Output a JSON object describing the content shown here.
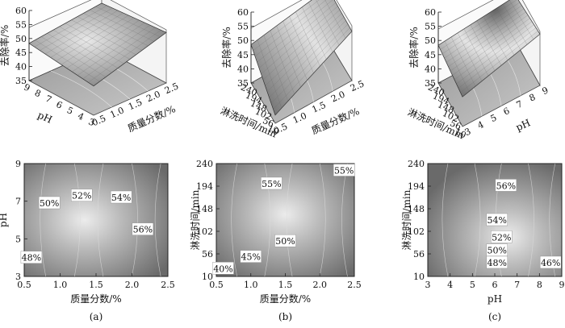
{
  "figure": {
    "captions": [
      "(a)",
      "(b)",
      "(c)"
    ]
  },
  "chart_data": [
    {
      "type": "surface3d",
      "panel": "a-top",
      "zlabel": "去除率/%",
      "zticks": [
        "60",
        "55",
        "50",
        "45",
        "40",
        "35"
      ],
      "zlim": [
        35,
        60
      ],
      "xlabel": "质量分数/%",
      "xticks": [
        "0.5",
        "1.0",
        "1.5",
        "2.0",
        "2.5"
      ],
      "ylabel": "pH",
      "yticks": [
        "3",
        "4",
        "5",
        "6",
        "7",
        "8",
        "9"
      ]
    },
    {
      "type": "surface3d",
      "panel": "b-top",
      "zlabel": "去除率/%",
      "zticks": [
        "60",
        "55",
        "50",
        "45",
        "40",
        "35"
      ],
      "zlim": [
        35,
        60
      ],
      "xlabel": "质量分数/%",
      "xticks": [
        "0.5",
        "1.0",
        "1.5",
        "2.0",
        "2.5"
      ],
      "ylabel": "淋洗时间/min",
      "yticks": [
        "10",
        "56",
        "102",
        "148",
        "194",
        "240"
      ]
    },
    {
      "type": "surface3d",
      "panel": "c-top",
      "zlabel": "去除率/%",
      "zticks": [
        "60",
        "55",
        "50",
        "45",
        "40",
        "35"
      ],
      "zlim": [
        35,
        60
      ],
      "xlabel": "pH",
      "xticks": [
        "3",
        "4",
        "5",
        "6",
        "7",
        "8",
        "9"
      ],
      "ylabel": "淋洗时间/min",
      "yticks": [
        "10",
        "56",
        "102",
        "148",
        "194",
        "240"
      ]
    },
    {
      "type": "contour",
      "panel": "a",
      "xlabel": "质量分数/%",
      "ylabel": "pH",
      "xlim": [
        0.5,
        2.5
      ],
      "ylim": [
        3,
        9
      ],
      "xticks": [
        "0.5",
        "1.0",
        "1.5",
        "2.0",
        "2.5"
      ],
      "yticks": [
        "3",
        "5",
        "7",
        "9"
      ],
      "contour_labels": [
        {
          "text": "48%",
          "x": 0.6,
          "y": 4.0
        },
        {
          "text": "50%",
          "x": 0.85,
          "y": 6.9
        },
        {
          "text": "52%",
          "x": 1.3,
          "y": 7.3
        },
        {
          "text": "54%",
          "x": 1.85,
          "y": 7.2
        },
        {
          "text": "56%",
          "x": 2.15,
          "y": 5.5
        }
      ]
    },
    {
      "type": "contour",
      "panel": "b",
      "xlabel": "质量分数/%",
      "ylabel": "淋洗时间/min",
      "xlim": [
        0.5,
        2.5
      ],
      "ylim": [
        10,
        240
      ],
      "xticks": [
        "0.5",
        "1.0",
        "1.5",
        "2.0",
        "2.5"
      ],
      "yticks": [
        "10",
        "56",
        "102",
        "148",
        "194",
        "240"
      ],
      "contour_labels": [
        {
          "text": "40%",
          "x": 0.6,
          "y": 26
        },
        {
          "text": "45%",
          "x": 1.0,
          "y": 50
        },
        {
          "text": "50%",
          "x": 1.5,
          "y": 82
        },
        {
          "text": "55%",
          "x": 1.3,
          "y": 199
        },
        {
          "text": "55%",
          "x": 2.35,
          "y": 226
        }
      ]
    },
    {
      "type": "contour",
      "panel": "c",
      "xlabel": "pH",
      "ylabel": "淋洗时间/min",
      "xlim": [
        3,
        9
      ],
      "ylim": [
        10,
        240
      ],
      "xticks": [
        "3",
        "4",
        "5",
        "6",
        "7",
        "8",
        "9"
      ],
      "yticks": [
        "10",
        "56",
        "102",
        "148",
        "194",
        "240"
      ],
      "contour_labels": [
        {
          "text": "56%",
          "x": 6.5,
          "y": 195
        },
        {
          "text": "54%",
          "x": 6.1,
          "y": 125
        },
        {
          "text": "52%",
          "x": 6.3,
          "y": 90
        },
        {
          "text": "50%",
          "x": 6.1,
          "y": 63
        },
        {
          "text": "48%",
          "x": 6.1,
          "y": 38
        },
        {
          "text": "46%",
          "x": 8.5,
          "y": 38
        }
      ]
    }
  ]
}
